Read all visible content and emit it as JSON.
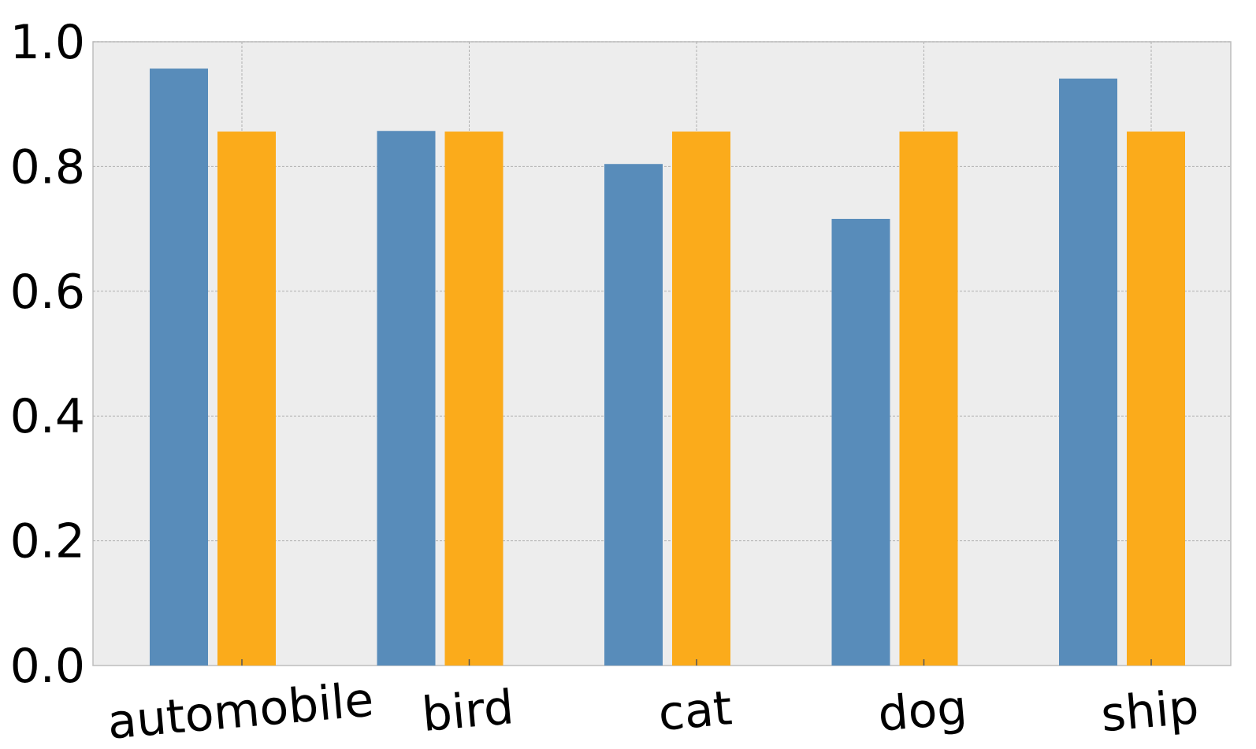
{
  "chart_data": {
    "type": "bar",
    "categories": [
      "automobile",
      "bird",
      "cat",
      "dog",
      "ship"
    ],
    "series": [
      {
        "values": [
          0.957,
          0.857,
          0.804,
          0.716,
          0.941
        ],
        "color": "#588cba"
      },
      {
        "values": [
          0.856,
          0.856,
          0.856,
          0.856,
          0.856
        ],
        "color": "#fbab1b"
      }
    ],
    "ylim": [
      0,
      1.0
    ],
    "yticks": [
      "0.0",
      "0.2",
      "0.4",
      "0.6",
      "0.8",
      "1.0"
    ],
    "grid": true,
    "colors": {
      "plot_background": "#ededed",
      "grid": "#b0b0b0"
    }
  }
}
